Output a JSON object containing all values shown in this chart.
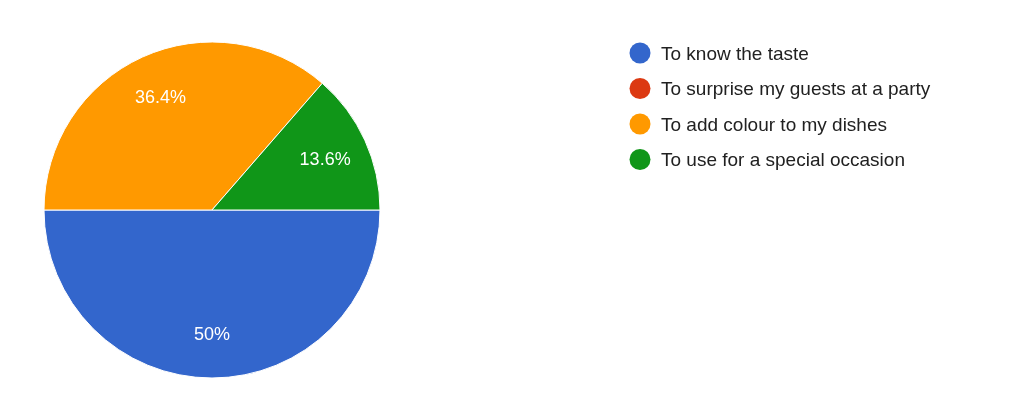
{
  "chart_data": {
    "type": "pie",
    "categories": [
      "To know the taste",
      "To surprise my guests at a party",
      "To add colour to my dishes",
      "To use for a special occasion"
    ],
    "values": [
      50,
      0,
      36.4,
      13.6
    ],
    "colors": [
      "#3366cc",
      "#dc3912",
      "#ff9900",
      "#109618"
    ],
    "value_labels": [
      "50%",
      null,
      "36.4%",
      "13.6%"
    ],
    "legend": "right"
  }
}
